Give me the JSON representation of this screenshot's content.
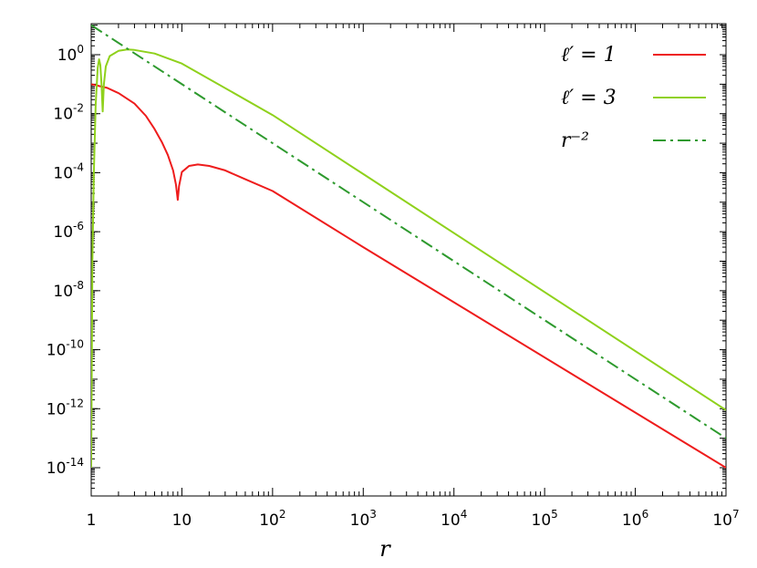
{
  "chart_data": {
    "type": "line",
    "xlabel": "r",
    "ylabel": "",
    "x_scale": "log",
    "y_scale": "log",
    "xlim": [
      1,
      10000000
    ],
    "ylim": [
      1e-15,
      10
    ],
    "x_ticks": [
      {
        "value": 1,
        "base": "1",
        "exp": ""
      },
      {
        "value": 10,
        "base": "10",
        "exp": ""
      },
      {
        "value": 100,
        "base": "10",
        "exp": "2"
      },
      {
        "value": 1000,
        "base": "10",
        "exp": "3"
      },
      {
        "value": 10000,
        "base": "10",
        "exp": "4"
      },
      {
        "value": 100000,
        "base": "10",
        "exp": "5"
      },
      {
        "value": 1000000,
        "base": "10",
        "exp": "6"
      },
      {
        "value": 10000000,
        "base": "10",
        "exp": "7"
      }
    ],
    "y_ticks": [
      {
        "value": 1,
        "base": "10",
        "exp": "0"
      },
      {
        "value": 0.01,
        "base": "10",
        "exp": "-2"
      },
      {
        "value": 0.0001,
        "base": "10",
        "exp": "-4"
      },
      {
        "value": 1e-06,
        "base": "10",
        "exp": "-6"
      },
      {
        "value": 1e-08,
        "base": "10",
        "exp": "-8"
      },
      {
        "value": 1e-10,
        "base": "10",
        "exp": "-10"
      },
      {
        "value": 1e-12,
        "base": "10",
        "exp": "-12"
      },
      {
        "value": 1e-14,
        "base": "10",
        "exp": "-14"
      }
    ],
    "legend_position": "top-right",
    "grid": false,
    "series": [
      {
        "name": "ℓ′ = 1",
        "color": "#ee1c1c",
        "style": "solid",
        "points": [
          [
            1,
            0.1
          ],
          [
            1.5,
            0.075
          ],
          [
            2,
            0.05
          ],
          [
            3,
            0.022
          ],
          [
            4,
            0.0085
          ],
          [
            5,
            0.003
          ],
          [
            6,
            0.0011
          ],
          [
            7,
            0.0004
          ],
          [
            8,
            0.00012
          ],
          [
            8.6,
            4e-05
          ],
          [
            9,
            1.2e-05
          ],
          [
            9.3,
            3.5e-05
          ],
          [
            10,
            0.000105
          ],
          [
            12,
            0.00017
          ],
          [
            15,
            0.00019
          ],
          [
            20,
            0.00017
          ],
          [
            30,
            0.00012
          ],
          [
            50,
            6e-05
          ],
          [
            100,
            2.4e-05
          ],
          [
            1000,
            3e-07
          ],
          [
            10000000,
            1e-14
          ]
        ]
      },
      {
        "name": "ℓ′ = 3",
        "color": "#8fd11c",
        "style": "solid",
        "points": [
          [
            1,
            1e-14
          ],
          [
            1.03,
            1e-07
          ],
          [
            1.07,
            0.0001
          ],
          [
            1.12,
            0.02
          ],
          [
            1.18,
            0.35
          ],
          [
            1.22,
            0.7
          ],
          [
            1.26,
            0.45
          ],
          [
            1.3,
            0.1
          ],
          [
            1.34,
            0.012
          ],
          [
            1.38,
            0.1
          ],
          [
            1.45,
            0.4
          ],
          [
            1.6,
            0.9
          ],
          [
            2,
            1.35
          ],
          [
            2.5,
            1.5
          ],
          [
            3,
            1.45
          ],
          [
            5,
            1.1
          ],
          [
            10,
            0.5
          ],
          [
            100,
            0.009
          ],
          [
            1000,
            9e-05
          ],
          [
            10000000,
            9e-13
          ]
        ]
      },
      {
        "name": "r⁻²",
        "color": "#2e9a2e",
        "style": "dash-dot",
        "points": [
          [
            1,
            10
          ],
          [
            10000000,
            1e-13
          ]
        ]
      }
    ]
  }
}
